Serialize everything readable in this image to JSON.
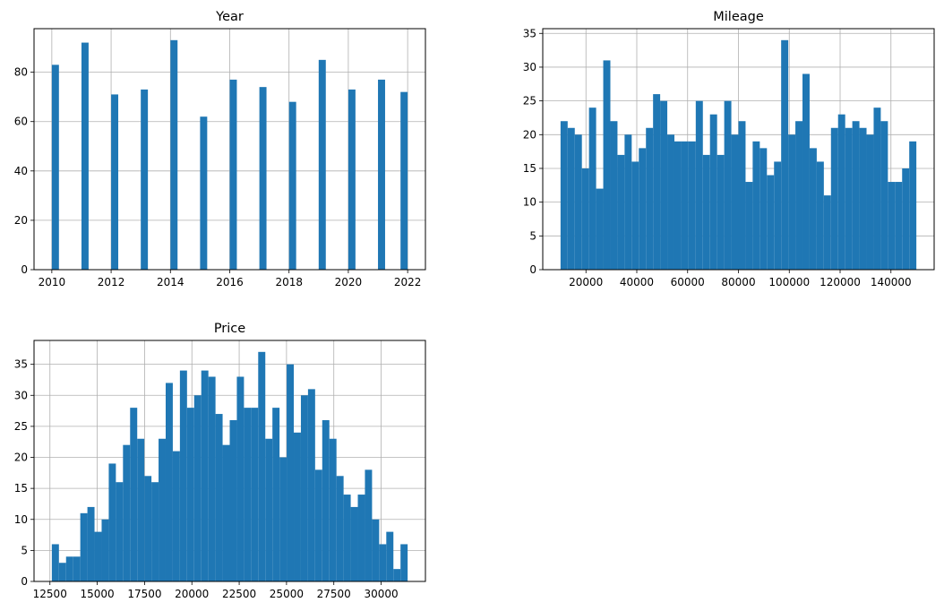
{
  "chart_data": [
    {
      "type": "histogram",
      "title": "Year",
      "xlabel": "",
      "ylabel": "",
      "bin_edges": [
        2010,
        2012,
        2014,
        2016,
        2018,
        2020,
        2022
      ],
      "bars": [
        {
          "x": 2010,
          "value": 83
        },
        {
          "x": 2011,
          "value": 92
        },
        {
          "x": 2012,
          "value": 71
        },
        {
          "x": 2013,
          "value": 73
        },
        {
          "x": 2014,
          "value": 93
        },
        {
          "x": 2015,
          "value": 62
        },
        {
          "x": 2016,
          "value": 77
        },
        {
          "x": 2017,
          "value": 74
        },
        {
          "x": 2018,
          "value": 68
        },
        {
          "x": 2019,
          "value": 85
        },
        {
          "x": 2020,
          "value": 73
        },
        {
          "x": 2021,
          "value": 77
        },
        {
          "x": 2022,
          "value": 72
        }
      ],
      "bins": 50,
      "xlim": [
        2009.4,
        2022.6
      ],
      "ylim": [
        0,
        97.65
      ],
      "xticks": [
        2010,
        2012,
        2014,
        2016,
        2018,
        2020,
        2022
      ],
      "xtick_labels": [
        "2010",
        "2012",
        "2014",
        "2016",
        "2018",
        "2020",
        "2022"
      ],
      "yticks": [
        0,
        20,
        40,
        60,
        80
      ],
      "ytick_labels": [
        "0",
        "20",
        "40",
        "60",
        "80"
      ],
      "grid": true,
      "color": "#1f77b4"
    },
    {
      "type": "histogram",
      "title": "Mileage",
      "xlabel": "",
      "ylabel": "",
      "range": [
        10000,
        150000
      ],
      "bins": 50,
      "counts": [
        22,
        21,
        20,
        15,
        24,
        12,
        31,
        22,
        17,
        20,
        16,
        18,
        21,
        26,
        25,
        20,
        19,
        19,
        19,
        25,
        17,
        23,
        17,
        25,
        20,
        22,
        13,
        19,
        18,
        14,
        16,
        34,
        20,
        22,
        29,
        18,
        16,
        11,
        21,
        23,
        21,
        22,
        21,
        20,
        24,
        22,
        13,
        13,
        15,
        19
      ],
      "xlim": [
        3000,
        157000
      ],
      "ylim": [
        0,
        35.7
      ],
      "xticks": [
        20000,
        40000,
        60000,
        80000,
        100000,
        120000,
        140000
      ],
      "xtick_labels": [
        "20000",
        "40000",
        "60000",
        "80000",
        "100000",
        "120000",
        "140000"
      ],
      "yticks": [
        0,
        5,
        10,
        15,
        20,
        25,
        30,
        35
      ],
      "ytick_labels": [
        "0",
        "5",
        "10",
        "15",
        "20",
        "25",
        "30",
        "35"
      ],
      "grid": true,
      "color": "#1f77b4"
    },
    {
      "type": "histogram",
      "title": "Price",
      "xlabel": "",
      "ylabel": "",
      "range": [
        12600,
        31400
      ],
      "bins": 50,
      "counts": [
        6,
        3,
        4,
        4,
        11,
        12,
        8,
        10,
        19,
        16,
        22,
        28,
        23,
        17,
        16,
        23,
        32,
        21,
        34,
        28,
        30,
        34,
        33,
        27,
        22,
        26,
        33,
        28,
        28,
        37,
        23,
        28,
        20,
        35,
        24,
        30,
        31,
        18,
        26,
        23,
        17,
        14,
        12,
        14,
        18,
        10,
        6,
        8,
        2,
        6
      ],
      "xlim": [
        11660,
        32340
      ],
      "ylim": [
        0,
        38.85
      ],
      "xticks": [
        12500,
        15000,
        17500,
        20000,
        22500,
        25000,
        27500,
        30000
      ],
      "xtick_labels": [
        "12500",
        "15000",
        "17500",
        "20000",
        "22500",
        "25000",
        "27500",
        "30000"
      ],
      "yticks": [
        0,
        5,
        10,
        15,
        20,
        25,
        30,
        35
      ],
      "ytick_labels": [
        "0",
        "5",
        "10",
        "15",
        "20",
        "25",
        "30",
        "35"
      ],
      "grid": true,
      "color": "#1f77b4"
    }
  ]
}
